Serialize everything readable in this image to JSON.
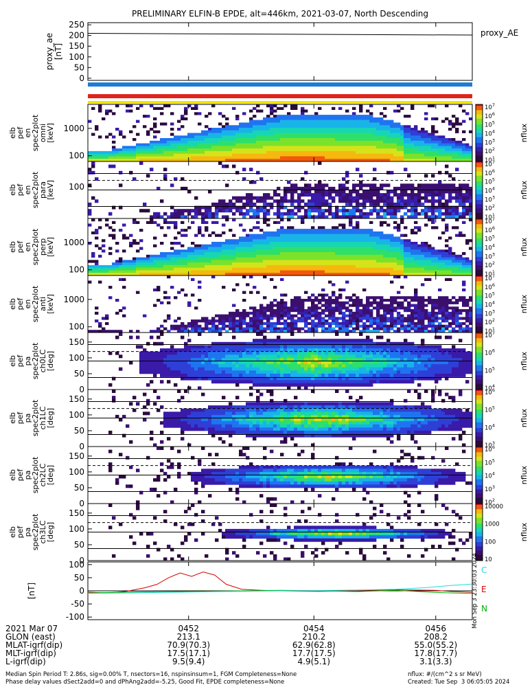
{
  "title": "PRELIMINARY ELFIN-B EPDE, alt=446km, 2021-03-07, North Descending",
  "colors": {
    "bar_blue": "#1e7bd6",
    "bar_red": "#e0241c",
    "bar_yellow": "#f4e200",
    "E_trace": "#d40000",
    "N_trace": "#00b000",
    "C_trace": "#22d8e0",
    "curve_red": "#d40000"
  },
  "chart_data": [
    {
      "type": "line",
      "id": "proxy_ae",
      "ylabel": "proxy_ae\n[nT]",
      "legend": "proxy_AE",
      "y_ticks": [
        "250",
        "200",
        "150",
        "100",
        "50",
        "0"
      ],
      "ylim": [
        -10,
        260
      ],
      "series": [
        {
          "name": "proxy_AE",
          "x": [
            0,
            0.5,
            1
          ],
          "values": [
            210,
            206,
            202
          ]
        }
      ]
    },
    {
      "type": "heatmap",
      "id": "omni",
      "ylabel": [
        "elb",
        "pef",
        "en",
        "spec2plot",
        "omni",
        "[keV]"
      ],
      "y_ticks": [
        "1000",
        "100"
      ],
      "colorbar": {
        "label": "nflux",
        "ticks": [
          "10^7",
          "10^6",
          "10^5",
          "10^4",
          "10^3",
          "10^2",
          "10^1"
        ]
      }
    },
    {
      "type": "heatmap",
      "id": "para",
      "ylabel": [
        "elb",
        "pef",
        "en",
        "spec2plot",
        "para",
        "[keV]"
      ],
      "y_ticks": [
        "1000",
        "100"
      ],
      "colorbar": {
        "label": "nflux",
        "ticks": [
          "10^7",
          "10^6",
          "10^5",
          "10^4",
          "10^3",
          "10^2",
          "10^1"
        ]
      }
    },
    {
      "type": "heatmap",
      "id": "perp",
      "ylabel": [
        "elb",
        "pef",
        "en",
        "spec2plot",
        "perp",
        "[keV]"
      ],
      "y_ticks": [
        "1000",
        "100"
      ],
      "colorbar": {
        "label": "nflux",
        "ticks": [
          "10^7",
          "10^6",
          "10^5",
          "10^4",
          "10^3",
          "10^2",
          "10^1"
        ]
      }
    },
    {
      "type": "heatmap",
      "id": "anti",
      "ylabel": [
        "elb",
        "pef",
        "en",
        "spec2plot",
        "anti",
        "[keV]"
      ],
      "y_ticks": [
        "1000",
        "100"
      ],
      "colorbar": {
        "label": "nflux",
        "ticks": [
          "10^7",
          "10^6",
          "10^5",
          "10^4",
          "10^3",
          "10^2",
          "10^1"
        ]
      }
    },
    {
      "type": "heatmap",
      "id": "ch0",
      "ylabel": [
        "elb",
        "pef",
        "pa",
        "spec2plot",
        "ch0LC",
        "[deg]"
      ],
      "y_ticks": [
        "150",
        "100",
        "50",
        "0"
      ],
      "colorbar": {
        "label": "nflux",
        "ticks": [
          "10^7",
          "10^6",
          "10^5",
          "10^4"
        ]
      }
    },
    {
      "type": "heatmap",
      "id": "ch1",
      "ylabel": [
        "elb",
        "pef",
        "pa",
        "spec2plot",
        "ch1LC",
        "[deg]"
      ],
      "y_ticks": [
        "150",
        "100",
        "50",
        "0"
      ],
      "colorbar": {
        "label": "nflux",
        "ticks": [
          "10^6",
          "10^5",
          "10^4",
          "10^3"
        ]
      }
    },
    {
      "type": "heatmap",
      "id": "ch2",
      "ylabel": [
        "elb",
        "pef",
        "pa",
        "spec2plot",
        "ch2LC",
        "[deg]"
      ],
      "y_ticks": [
        "150",
        "100",
        "50",
        "0"
      ],
      "colorbar": {
        "label": "nflux",
        "ticks": [
          "10^6",
          "10^5",
          "10^4",
          "10^3",
          "10^2"
        ]
      }
    },
    {
      "type": "heatmap",
      "id": "ch3",
      "ylabel": [
        "elb",
        "pef",
        "pa",
        "spec2plot",
        "ch3LC",
        "[deg]"
      ],
      "y_ticks": [
        "150",
        "100",
        "50",
        "0"
      ],
      "colorbar": {
        "label": "nflux",
        "ticks": [
          "10000",
          "1000",
          "100",
          "10"
        ]
      }
    },
    {
      "type": "line",
      "id": "bfield",
      "ylabel": "[nT]",
      "y_ticks": [
        "100",
        "50",
        "0",
        "-50",
        "-100"
      ],
      "ylim": [
        -110,
        110
      ],
      "legend": [
        "C",
        "E",
        "N"
      ],
      "side_stamp": "Mon Sep  3 23:30:03 2024",
      "series": [
        {
          "name": "E",
          "x": [
            0,
            0.05,
            0.1,
            0.15,
            0.18,
            0.21,
            0.24,
            0.27,
            0.3,
            0.33,
            0.36,
            0.4,
            0.45,
            0.5,
            0.6,
            0.7,
            0.8,
            0.9,
            0.95,
            1
          ],
          "values": [
            -5,
            -8,
            -2,
            12,
            25,
            50,
            68,
            55,
            72,
            60,
            25,
            6,
            2,
            0,
            -2,
            1,
            4,
            2,
            -3,
            -6
          ]
        },
        {
          "name": "N",
          "x": [
            0,
            0.1,
            0.2,
            0.3,
            0.4,
            0.5,
            0.6,
            0.7,
            0.8,
            0.9,
            0.95,
            1
          ],
          "values": [
            -8,
            -5,
            -3,
            -2,
            0,
            2,
            0,
            -3,
            2,
            -6,
            -8,
            -10
          ]
        },
        {
          "name": "C",
          "x": [
            0,
            0.1,
            0.2,
            0.3,
            0.4,
            0.5,
            0.6,
            0.7,
            0.8,
            0.88,
            0.94,
            1
          ],
          "values": [
            -10,
            -8,
            -6,
            -4,
            -2,
            0,
            1,
            3,
            6,
            12,
            20,
            26
          ]
        }
      ]
    },
    {
      "type": "table",
      "id": "ticks",
      "rows": [
        {
          "label": "2021 Mar 07",
          "vals": [
            "0452",
            "0454",
            "0456"
          ]
        },
        {
          "label": "GLON (east)",
          "vals": [
            "213.1",
            "210.2",
            "208.2"
          ]
        },
        {
          "label": "MLAT-igrf(dip)",
          "vals": [
            "70.9(70.3)",
            "62.9(62.8)",
            "55.0(55.2)"
          ]
        },
        {
          "label": "MLT-igrf(dip)",
          "vals": [
            "17.5(17.1)",
            "17.7(17.5)",
            "17.8(17.7)"
          ]
        },
        {
          "label": "L-igrf(dip)",
          "vals": [
            "9.5(9.4)",
            "4.9(5.1)",
            "3.1(3.3)"
          ]
        }
      ]
    }
  ],
  "footer": {
    "line1": "Median Spin Period T: 2.86s, sig=0.00% T, nsectors=16, nspinsinsum=1, FGM Completeness=None",
    "line2": "Phase delay values dSect2add=0 and dPhAng2add=-5.25, Good Fit, EPDE completeness=None",
    "units": "nflux: #/(cm^2 s sr MeV)",
    "created": "Created: Tue Sep  3 06:05:05 2024"
  }
}
